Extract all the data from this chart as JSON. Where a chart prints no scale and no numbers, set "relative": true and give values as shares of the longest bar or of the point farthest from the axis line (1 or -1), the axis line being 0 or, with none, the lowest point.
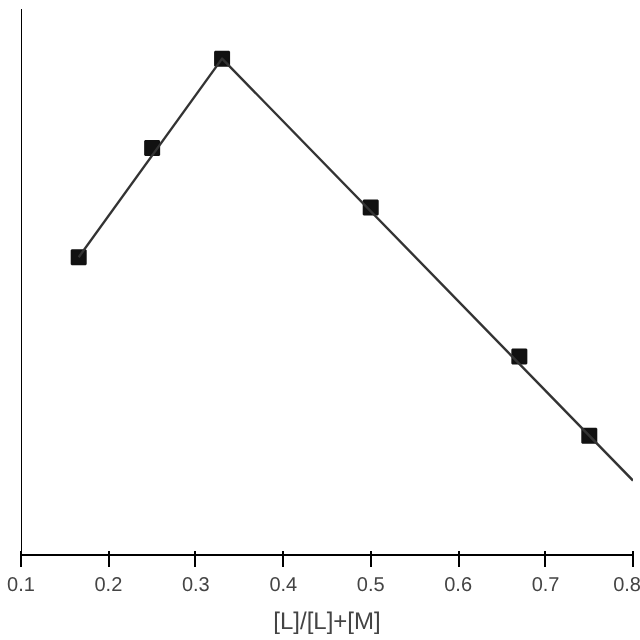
{
  "chart_data": {
    "type": "scatter",
    "xlabel": "[L]/[L]+[M]",
    "relative": true,
    "marker": "square",
    "tick_labels": "x",
    "xlim": [
      0.1,
      0.8
    ],
    "xticks": [
      0.1,
      0.2,
      0.3,
      0.4,
      0.5,
      0.6,
      0.7,
      0.8
    ],
    "series": [
      {
        "color": "#111111",
        "x": [
          0.166,
          0.25,
          0.33,
          0.5,
          0.67,
          0.75
        ],
        "values": [
          0.6,
          0.82,
          1,
          0.7,
          0.4,
          0.24
        ]
      },
      {
        "type": "line",
        "color": "#333333",
        "marker": "none",
        "x": [
          0.166,
          0.33,
          0.8
        ],
        "values": [
          0.6,
          1,
          0.15
        ]
      }
    ]
  }
}
